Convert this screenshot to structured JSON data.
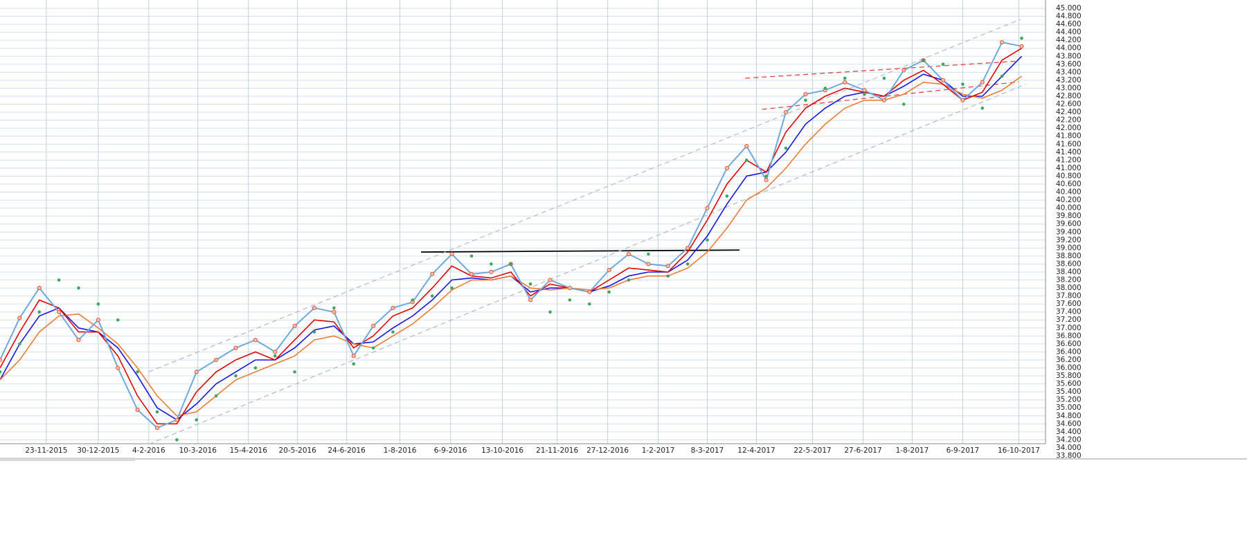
{
  "chart_data": {
    "type": "line",
    "xlim": [
      "2015-10-21",
      "2017-11-04"
    ],
    "xticks": [
      {
        "value": "2015-11-23",
        "label": "23-11-2015"
      },
      {
        "value": "2015-12-30",
        "label": "30-12-2015"
      },
      {
        "value": "2016-02-04",
        "label": "4-2-2016"
      },
      {
        "value": "2016-03-10",
        "label": "10-3-2016"
      },
      {
        "value": "2016-04-15",
        "label": "15-4-2016"
      },
      {
        "value": "2016-05-20",
        "label": "20-5-2016"
      },
      {
        "value": "2016-06-24",
        "label": "24-6-2016"
      },
      {
        "value": "2016-08-01",
        "label": "1-8-2016"
      },
      {
        "value": "2016-09-06",
        "label": "6-9-2016"
      },
      {
        "value": "2016-10-13",
        "label": "13-10-2016"
      },
      {
        "value": "2016-11-21",
        "label": "21-11-2016"
      },
      {
        "value": "2016-12-27",
        "label": "27-12-2016"
      },
      {
        "value": "2017-02-01",
        "label": "1-2-2017"
      },
      {
        "value": "2017-03-08",
        "label": "8-3-2017"
      },
      {
        "value": "2017-04-12",
        "label": "12-4-2017"
      },
      {
        "value": "2017-05-22",
        "label": "22-5-2017"
      },
      {
        "value": "2017-06-27",
        "label": "27-6-2017"
      },
      {
        "value": "2017-08-01",
        "label": "1-8-2017"
      },
      {
        "value": "2017-09-06",
        "label": "6-9-2017"
      },
      {
        "value": "2017-10-16",
        "label": "16-10-2017"
      }
    ],
    "ylim": [
      33800,
      45000
    ],
    "yticks": [
      {
        "value": 33800,
        "label": "33.800"
      },
      {
        "value": 34000,
        "label": "34.000"
      },
      {
        "value": 34200,
        "label": "34.200"
      },
      {
        "value": 34400,
        "label": "34.400"
      },
      {
        "value": 34600,
        "label": "34.600"
      },
      {
        "value": 34800,
        "label": "34.800"
      },
      {
        "value": 35000,
        "label": "35.000"
      },
      {
        "value": 35200,
        "label": "35.200"
      },
      {
        "value": 35400,
        "label": "35.400"
      },
      {
        "value": 35600,
        "label": "35.600"
      },
      {
        "value": 35800,
        "label": "35.800"
      },
      {
        "value": 36000,
        "label": "36.000"
      },
      {
        "value": 36200,
        "label": "36.200"
      },
      {
        "value": 36400,
        "label": "36.400"
      },
      {
        "value": 36600,
        "label": "36.600"
      },
      {
        "value": 36800,
        "label": "36.800"
      },
      {
        "value": 37000,
        "label": "37.000"
      },
      {
        "value": 37200,
        "label": "37.200"
      },
      {
        "value": 37400,
        "label": "37.400"
      },
      {
        "value": 37600,
        "label": "37.600"
      },
      {
        "value": 37800,
        "label": "37.800"
      },
      {
        "value": 38000,
        "label": "38.000"
      },
      {
        "value": 38200,
        "label": "38.200"
      },
      {
        "value": 38400,
        "label": "38.400"
      },
      {
        "value": 38600,
        "label": "38.600"
      },
      {
        "value": 38800,
        "label": "38.800"
      },
      {
        "value": 39000,
        "label": "39.000"
      },
      {
        "value": 39200,
        "label": "39.200"
      },
      {
        "value": 39400,
        "label": "39.400"
      },
      {
        "value": 39600,
        "label": "39.600"
      },
      {
        "value": 39800,
        "label": "39.800"
      },
      {
        "value": 40000,
        "label": "40.000"
      },
      {
        "value": 40200,
        "label": "40.200"
      },
      {
        "value": 40400,
        "label": "40.400"
      },
      {
        "value": 40600,
        "label": "40.600"
      },
      {
        "value": 40800,
        "label": "40.800"
      },
      {
        "value": 41000,
        "label": "41.000"
      },
      {
        "value": 41200,
        "label": "41.200"
      },
      {
        "value": 41400,
        "label": "41.400"
      },
      {
        "value": 41600,
        "label": "41.600"
      },
      {
        "value": 41800,
        "label": "41.800"
      },
      {
        "value": 42000,
        "label": "42.000"
      },
      {
        "value": 42200,
        "label": "42.200"
      },
      {
        "value": 42400,
        "label": "42.400"
      },
      {
        "value": 42600,
        "label": "42.600"
      },
      {
        "value": 42800,
        "label": "42.800"
      },
      {
        "value": 43000,
        "label": "43.000"
      },
      {
        "value": 43200,
        "label": "43.200"
      },
      {
        "value": 43400,
        "label": "43.400"
      },
      {
        "value": 43600,
        "label": "43.600"
      },
      {
        "value": 43800,
        "label": "43.800"
      },
      {
        "value": 44000,
        "label": "44.000"
      },
      {
        "value": 44200,
        "label": "44.200"
      },
      {
        "value": 44400,
        "label": "44.400"
      },
      {
        "value": 44600,
        "label": "44.600"
      },
      {
        "value": 44800,
        "label": "44.800"
      },
      {
        "value": 45000,
        "label": "45.000"
      }
    ],
    "grid": true,
    "x": [
      "2015-10-21",
      "2015-11-04",
      "2015-11-18",
      "2015-12-02",
      "2015-12-16",
      "2015-12-30",
      "2016-01-13",
      "2016-01-27",
      "2016-02-10",
      "2016-02-24",
      "2016-03-09",
      "2016-03-23",
      "2016-04-06",
      "2016-04-20",
      "2016-05-04",
      "2016-05-18",
      "2016-06-01",
      "2016-06-15",
      "2016-06-29",
      "2016-07-13",
      "2016-07-27",
      "2016-08-10",
      "2016-08-24",
      "2016-09-07",
      "2016-09-21",
      "2016-10-05",
      "2016-10-19",
      "2016-11-02",
      "2016-11-16",
      "2016-11-30",
      "2016-12-14",
      "2016-12-28",
      "2017-01-11",
      "2017-01-25",
      "2017-02-08",
      "2017-02-22",
      "2017-03-08",
      "2017-03-22",
      "2017-04-05",
      "2017-04-19",
      "2017-05-03",
      "2017-05-17",
      "2017-05-31",
      "2017-06-14",
      "2017-06-28",
      "2017-07-12",
      "2017-07-26",
      "2017-08-09",
      "2017-08-23",
      "2017-09-06",
      "2017-09-20",
      "2017-10-04",
      "2017-10-18"
    ],
    "series": [
      {
        "color": "#1414e0",
        "values": [
          35700,
          36600,
          37300,
          37500,
          37000,
          36900,
          36500,
          35800,
          35000,
          34700,
          35100,
          35600,
          35900,
          36200,
          36200,
          36500,
          36950,
          37050,
          36600,
          36650,
          37000,
          37300,
          37700,
          38200,
          38250,
          38200,
          38300,
          37900,
          38000,
          38000,
          37900,
          38050,
          38300,
          38400,
          38400,
          38700,
          39300,
          40100,
          40800,
          40900,
          41400,
          42100,
          42500,
          42800,
          42900,
          42800,
          43050,
          43350,
          43200,
          42800,
          42800,
          43300,
          43800
        ]
      },
      {
        "color": "#f07a32",
        "values": [
          35700,
          36200,
          36900,
          37300,
          37350,
          37000,
          36600,
          36000,
          35300,
          34800,
          34900,
          35300,
          35700,
          35900,
          36100,
          36300,
          36700,
          36800,
          36600,
          36500,
          36800,
          37100,
          37500,
          37950,
          38200,
          38200,
          38300,
          38000,
          37950,
          38000,
          37950,
          38000,
          38200,
          38300,
          38300,
          38500,
          38900,
          39500,
          40200,
          40500,
          41000,
          41600,
          42100,
          42500,
          42700,
          42700,
          42850,
          43150,
          43100,
          42850,
          42750,
          42950,
          43300
        ]
      },
      {
        "color": "#e00000",
        "values": [
          36000,
          36900,
          37700,
          37500,
          36900,
          36900,
          36300,
          35300,
          34600,
          34600,
          35400,
          35900,
          36200,
          36400,
          36200,
          36700,
          37200,
          37150,
          36500,
          36800,
          37300,
          37500,
          38000,
          38550,
          38300,
          38250,
          38400,
          37800,
          38100,
          38000,
          37900,
          38200,
          38500,
          38450,
          38400,
          38900,
          39700,
          40600,
          41200,
          40900,
          41900,
          42500,
          42800,
          43000,
          42900,
          42800,
          43200,
          43450,
          43100,
          42700,
          42900,
          43700,
          44000
        ]
      },
      {
        "color": "#6fa8dc",
        "marker": "#e8553a",
        "values": [
          36200,
          37250,
          38000,
          37400,
          36700,
          37200,
          36000,
          34950,
          34500,
          34700,
          35900,
          36200,
          36500,
          36700,
          36400,
          37050,
          37500,
          37400,
          36300,
          37050,
          37500,
          37650,
          38350,
          38850,
          38350,
          38400,
          38600,
          37700,
          38200,
          38000,
          37900,
          38450,
          38850,
          38600,
          38550,
          39000,
          40000,
          41000,
          41550,
          40700,
          42400,
          42850,
          42950,
          43150,
          42950,
          42700,
          43450,
          43700,
          43200,
          42700,
          43150,
          44150,
          44050
        ]
      },
      {
        "color": "#3aa860",
        "style": "dots",
        "values": [
          35900,
          36600,
          37400,
          38200,
          38000,
          37600,
          37200,
          35900,
          34900,
          34200,
          34700,
          35300,
          35800,
          36000,
          36300,
          35900,
          36900,
          37500,
          36100,
          36500,
          36900,
          37700,
          37800,
          38000,
          38800,
          38600,
          38600,
          38100,
          37400,
          37700,
          37600,
          37900,
          38200,
          38850,
          38300,
          38600,
          39200,
          40300,
          41200,
          40800,
          41500,
          42700,
          43000,
          43250,
          42850,
          43250,
          42600,
          43700,
          43600,
          43100,
          42500,
          43300,
          44250
        ]
      }
    ],
    "trendlines": [
      {
        "color": "#000000",
        "x": [
          "2016-08-16",
          "2017-03-31"
        ],
        "values": [
          38900,
          38950
        ]
      },
      {
        "color": "#b8bcc6",
        "dash": true,
        "x": [
          "2016-02-04",
          "2017-10-17"
        ],
        "values": [
          35900,
          44720
        ]
      },
      {
        "color": "#b8bcc6",
        "dash": true,
        "x": [
          "2016-02-04",
          "2017-10-21"
        ],
        "values": [
          34090,
          43100
        ]
      },
      {
        "color": "#e84040",
        "dash": true,
        "x": [
          "2017-04-04",
          "2017-10-16"
        ],
        "values": [
          43250,
          43680
        ]
      },
      {
        "color": "#e84040",
        "dash": true,
        "x": [
          "2017-04-16",
          "2017-10-16"
        ],
        "values": [
          42470,
          43160
        ]
      }
    ]
  }
}
